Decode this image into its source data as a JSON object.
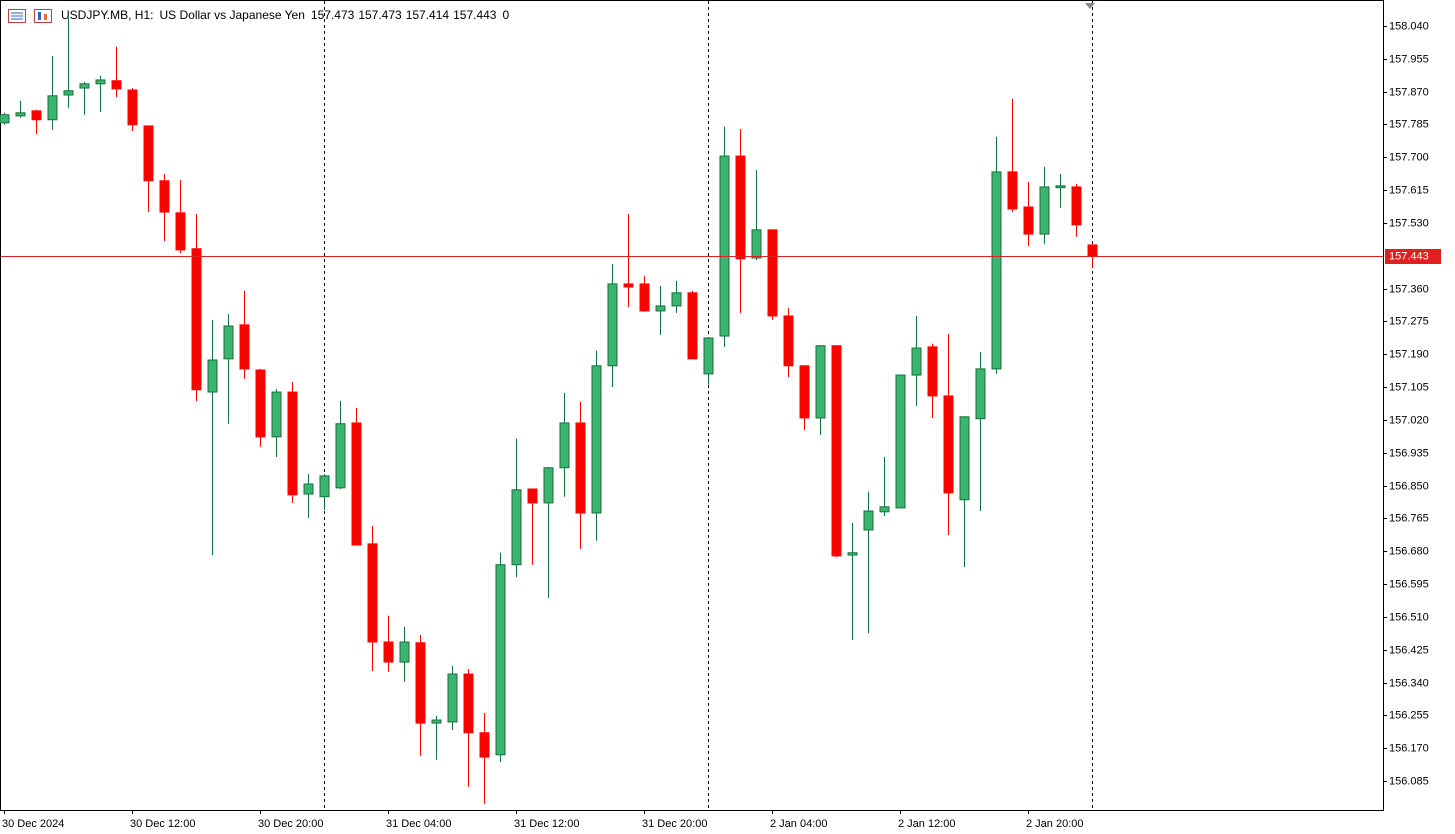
{
  "chart_data": {
    "type": "candlestick",
    "symbol": "USDJPY.MB, H1:",
    "title": "US Dollar vs Japanese Yen",
    "volume": 0,
    "categories": [
      "30 Dec 2024",
      null,
      null,
      null,
      null,
      null,
      null,
      null,
      "30 Dec 12:00",
      null,
      null,
      null,
      null,
      null,
      null,
      null,
      "30 Dec 20:00",
      null,
      null,
      null,
      null,
      null,
      null,
      null,
      "31 Dec 04:00",
      null,
      null,
      null,
      null,
      null,
      null,
      null,
      "31 Dec 12:00",
      null,
      null,
      null,
      null,
      null,
      null,
      null,
      "31 Dec 20:00",
      null,
      null,
      null,
      null,
      null,
      null,
      null,
      "2 Jan 04:00",
      null,
      null,
      null,
      null,
      null,
      null,
      null,
      "2 Jan 12:00",
      null,
      null,
      null,
      null,
      null,
      null,
      null,
      "2 Jan 20:00",
      null,
      null,
      null,
      null
    ],
    "open": [
      157.789,
      157.807,
      157.82,
      157.797,
      157.861,
      157.879,
      157.89,
      157.898,
      157.874,
      157.781,
      157.639,
      157.556,
      157.463,
      157.092,
      157.178,
      157.266,
      157.149,
      156.976,
      157.092,
      156.828,
      156.821,
      156.844,
      157.012,
      156.699,
      156.445,
      156.393,
      156.443,
      156.235,
      156.238,
      156.362,
      156.21,
      156.153,
      156.645,
      156.841,
      156.805,
      156.896,
      157.012,
      156.779,
      157.16,
      157.372,
      157.372,
      157.302,
      157.315,
      157.349,
      157.139,
      157.237,
      157.703,
      157.439,
      157.512,
      157.289,
      157.16,
      157.025,
      157.212,
      156.67,
      156.735,
      156.782,
      156.792,
      157.136,
      157.209,
      157.082,
      156.813,
      157.023,
      157.152,
      157.662,
      157.571,
      157.501,
      157.621,
      157.623,
      157.473
    ],
    "high": [
      157.815,
      157.846,
      157.823,
      157.962,
      158.061,
      157.895,
      157.911,
      157.986,
      157.879,
      157.781,
      157.657,
      157.641,
      157.553,
      157.279,
      157.294,
      157.354,
      157.152,
      157.1,
      157.118,
      156.88,
      156.88,
      157.069,
      157.051,
      156.746,
      156.513,
      156.484,
      156.463,
      156.254,
      156.383,
      156.375,
      156.261,
      156.676,
      156.971,
      156.841,
      156.898,
      157.09,
      157.067,
      157.199,
      157.424,
      157.553,
      157.393,
      157.367,
      157.38,
      157.354,
      157.232,
      157.779,
      157.773,
      157.667,
      157.512,
      157.31,
      157.16,
      157.212,
      157.212,
      156.753,
      156.834,
      156.924,
      157.136,
      157.289,
      157.217,
      157.243,
      157.028,
      157.196,
      157.753,
      157.851,
      157.636,
      157.675,
      157.657,
      157.631,
      157.473
    ],
    "low": [
      157.784,
      157.802,
      157.76,
      157.771,
      157.828,
      157.81,
      157.817,
      157.856,
      157.768,
      157.558,
      157.483,
      157.452,
      157.069,
      156.67,
      157.01,
      157.126,
      156.95,
      156.924,
      156.805,
      156.766,
      156.787,
      156.841,
      156.694,
      156.37,
      156.368,
      156.342,
      156.15,
      156.14,
      156.217,
      156.07,
      156.026,
      156.134,
      156.613,
      156.645,
      156.559,
      156.821,
      156.686,
      156.707,
      157.105,
      157.312,
      157.3,
      157.24,
      157.297,
      157.178,
      157.111,
      157.209,
      157.297,
      157.434,
      157.279,
      157.131,
      156.994,
      156.981,
      156.665,
      156.45,
      156.468,
      156.771,
      156.792,
      157.056,
      157.025,
      156.722,
      156.639,
      156.784,
      157.139,
      157.558,
      157.47,
      157.476,
      157.569,
      157.494,
      157.414
    ],
    "close": [
      157.81,
      157.815,
      157.797,
      157.859,
      157.872,
      157.89,
      157.9,
      157.877,
      157.784,
      157.639,
      157.558,
      157.46,
      157.098,
      157.175,
      157.263,
      157.152,
      156.976,
      157.092,
      156.826,
      156.854,
      156.875,
      157.01,
      156.696,
      156.445,
      156.393,
      156.445,
      156.235,
      156.243,
      156.362,
      156.21,
      156.147,
      156.645,
      156.839,
      156.805,
      156.896,
      157.012,
      156.779,
      157.16,
      157.372,
      157.364,
      157.302,
      157.315,
      157.349,
      157.178,
      157.232,
      157.703,
      157.437,
      157.512,
      157.289,
      157.16,
      157.025,
      157.212,
      156.668,
      156.676,
      156.784,
      156.795,
      157.136,
      157.206,
      157.082,
      156.831,
      157.028,
      157.152,
      157.662,
      157.566,
      157.501,
      157.623,
      157.626,
      157.525,
      157.443
    ],
    "up_color": "#3cb371",
    "up_line": "#14723a",
    "down_color": "#ff0000",
    "bid_color": "#e02020",
    "ylim": [
      156.01,
      158.107
    ],
    "yticks": [
      {
        "value": 158.04,
        "label": "158.040"
      },
      157.955,
      {
        "value": 157.87,
        "label": "157.870"
      },
      157.785,
      {
        "value": 157.7,
        "label": "157.700"
      },
      157.615,
      {
        "value": 157.53,
        "label": "157.530"
      },
      {
        "value": 157.36,
        "label": "157.360"
      },
      157.275,
      {
        "value": 157.19,
        "label": "157.190"
      },
      157.105,
      {
        "value": 157.02,
        "label": "157.020"
      },
      156.935,
      {
        "value": 156.85,
        "label": "156.850"
      },
      156.765,
      {
        "value": 156.68,
        "label": "156.680"
      },
      156.595,
      {
        "value": 156.51,
        "label": "156.510"
      },
      156.425,
      {
        "value": 156.34,
        "label": "156.340"
      },
      156.255,
      {
        "value": 156.17,
        "label": "156.170"
      },
      156.085
    ],
    "grid": false
  }
}
